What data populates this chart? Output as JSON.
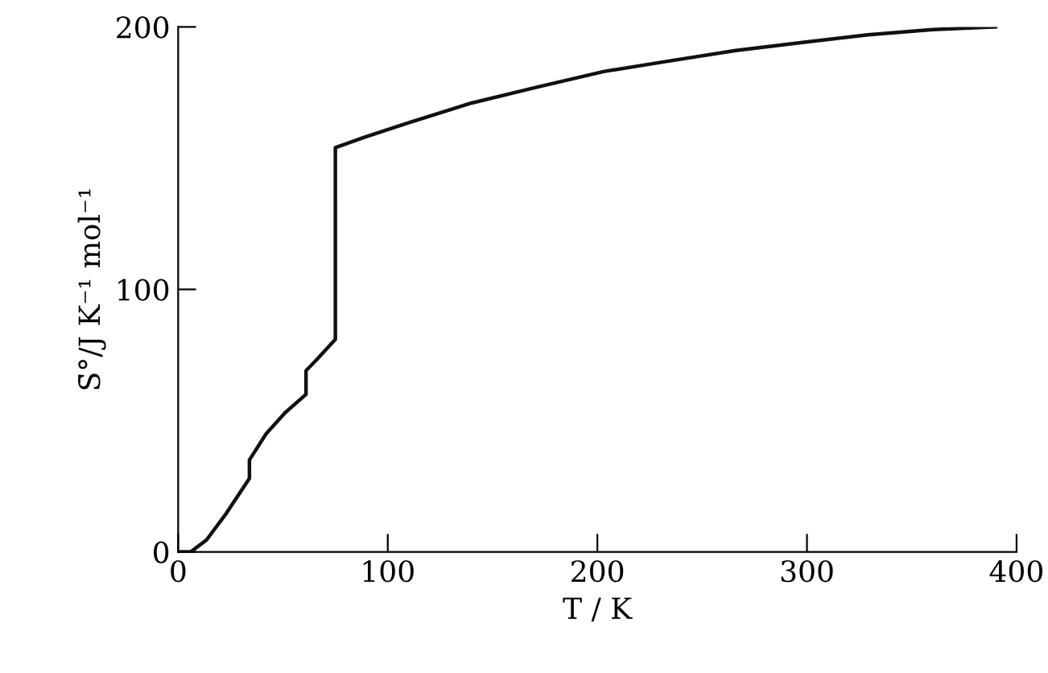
{
  "chart_data": {
    "type": "line",
    "xlabel": "T / K",
    "ylabel": "S̄°/J K⁻¹ mol⁻¹",
    "xlim": [
      0,
      400
    ],
    "ylim": [
      0,
      200
    ],
    "xticks": [
      0,
      100,
      200,
      300,
      400
    ],
    "yticks": [
      0,
      100,
      200
    ],
    "grid": false,
    "legend": false,
    "marker": "none",
    "line_style": "solid",
    "series": [
      {
        "color": "#111111",
        "x": [
          0,
          6,
          13.6,
          23,
          34,
          34,
          42,
          51,
          61,
          61,
          67,
          75,
          75,
          89,
          108,
          140,
          171,
          203,
          234,
          266,
          297,
          329,
          360,
          390
        ],
        "values": [
          0,
          0,
          4.6,
          14.7,
          28,
          35,
          45,
          53,
          60,
          69,
          74,
          81,
          154,
          158,
          163,
          171,
          177,
          183,
          187,
          191,
          194,
          197,
          199,
          200
        ]
      }
    ]
  }
}
